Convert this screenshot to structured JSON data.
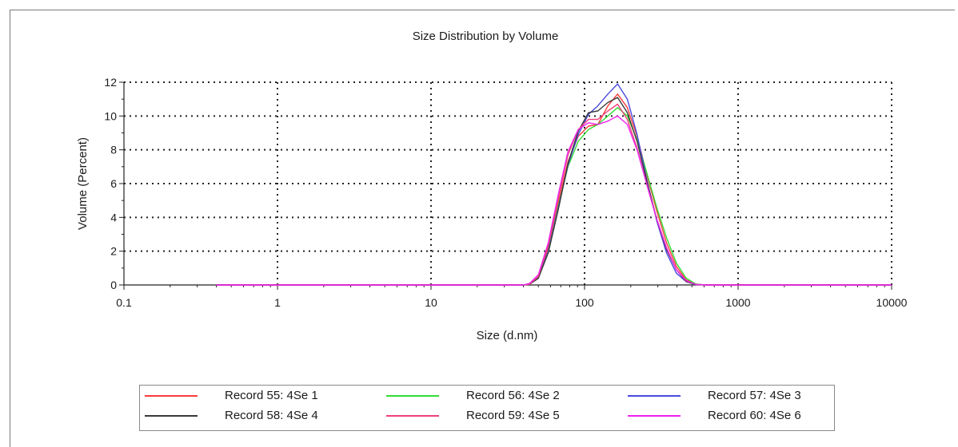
{
  "chart_data": {
    "type": "line",
    "title": "Size Distribution by Volume",
    "xlabel": "Size (d.nm)",
    "ylabel": "Volume (Percent)",
    "xscale": "log",
    "xlim": [
      0.1,
      10000
    ],
    "ylim": [
      0,
      12
    ],
    "xticks": [
      0.1,
      1,
      10,
      100,
      1000,
      10000
    ],
    "xtick_labels": [
      "0.1",
      "1",
      "10",
      "100",
      "1000",
      "10000"
    ],
    "yticks": [
      0,
      2,
      4,
      6,
      8,
      10,
      12
    ],
    "ytick_labels": [
      "0",
      "2",
      "4",
      "6",
      "8",
      "10",
      "12"
    ],
    "grid": true,
    "legend_position": "bottom",
    "series": [
      {
        "name": "Record 55: 4Se 1",
        "color": "#ff3b3b",
        "x": [
          0.4,
          40,
          44,
          50,
          58,
          68,
          78,
          91,
          106,
          122,
          142,
          164,
          190,
          220,
          255,
          295,
          342,
          396,
          459,
          531,
          615,
          10000
        ],
        "y": [
          0,
          0,
          0.05,
          0.5,
          2.2,
          5.0,
          7.3,
          8.8,
          9.4,
          9.5,
          10.6,
          11.3,
          10.5,
          8.8,
          6.5,
          4.4,
          2.5,
          1.1,
          0.3,
          0.05,
          0,
          0
        ]
      },
      {
        "name": "Record 56: 4Se 2",
        "color": "#33dd33",
        "x": [
          0.4,
          40,
          44,
          50,
          58,
          68,
          78,
          91,
          106,
          122,
          142,
          164,
          190,
          220,
          255,
          295,
          342,
          396,
          459,
          531,
          615,
          10000
        ],
        "y": [
          0,
          0,
          0.05,
          0.4,
          2.0,
          4.8,
          7.0,
          8.5,
          9.2,
          9.5,
          10.0,
          10.5,
          10.0,
          8.6,
          6.6,
          4.6,
          2.8,
          1.3,
          0.4,
          0.05,
          0,
          0
        ]
      },
      {
        "name": "Record 57: 4Se 3",
        "color": "#4a4ae0",
        "x": [
          0.4,
          40,
          44,
          50,
          58,
          68,
          78,
          91,
          106,
          122,
          142,
          164,
          190,
          220,
          255,
          295,
          342,
          396,
          459,
          531,
          615,
          10000
        ],
        "y": [
          0,
          0,
          0.05,
          0.4,
          2.0,
          4.7,
          7.1,
          8.9,
          10.1,
          10.6,
          11.3,
          11.9,
          11.0,
          8.9,
          6.2,
          3.8,
          1.9,
          0.7,
          0.2,
          0.02,
          0,
          0
        ]
      },
      {
        "name": "Record 58: 4Se 4",
        "color": "#3a3a3a",
        "x": [
          0.4,
          40,
          44,
          50,
          58,
          68,
          78,
          91,
          106,
          122,
          142,
          164,
          190,
          220,
          255,
          295,
          342,
          396,
          459,
          531,
          615,
          10000
        ],
        "y": [
          0,
          0,
          0.05,
          0.4,
          1.9,
          4.6,
          7.2,
          9.1,
          10.2,
          10.3,
          10.8,
          11.1,
          10.2,
          8.5,
          6.1,
          3.9,
          2.1,
          0.9,
          0.2,
          0.03,
          0,
          0
        ]
      },
      {
        "name": "Record 59: 4Se 5",
        "color": "#f0407a",
        "x": [
          0.4,
          40,
          44,
          50,
          58,
          68,
          78,
          91,
          106,
          122,
          142,
          164,
          190,
          220,
          255,
          295,
          342,
          396,
          459,
          531,
          615,
          10000
        ],
        "y": [
          0,
          0,
          0.05,
          0.5,
          2.4,
          5.3,
          7.7,
          9.2,
          9.8,
          9.8,
          10.3,
          10.7,
          9.8,
          8.1,
          5.9,
          3.9,
          2.2,
          0.9,
          0.25,
          0.03,
          0,
          0
        ]
      },
      {
        "name": "Record 60: 4Se 6",
        "color": "#ee22ee",
        "x": [
          0.4,
          40,
          44,
          50,
          58,
          68,
          78,
          91,
          106,
          122,
          142,
          164,
          190,
          220,
          255,
          295,
          342,
          396,
          459,
          531,
          615,
          10000
        ],
        "y": [
          0,
          0,
          0.1,
          0.6,
          2.5,
          5.5,
          7.9,
          9.2,
          9.6,
          9.5,
          9.7,
          10.0,
          9.5,
          8.0,
          5.9,
          3.9,
          2.2,
          0.9,
          0.25,
          0.03,
          0,
          0
        ]
      }
    ]
  }
}
